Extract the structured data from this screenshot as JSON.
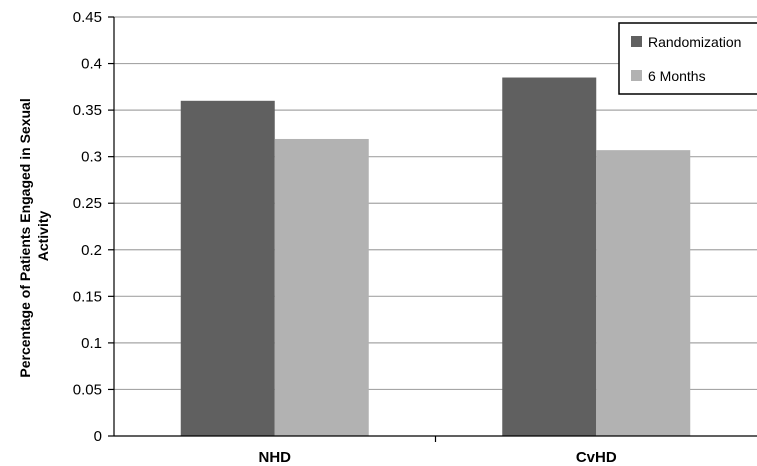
{
  "chart_data": {
    "type": "bar",
    "categories": [
      "NHD",
      "CvHD"
    ],
    "series": [
      {
        "name": "Randomization",
        "values": [
          0.36,
          0.385
        ],
        "color": "#606060"
      },
      {
        "name": "6 Months",
        "values": [
          0.319,
          0.307
        ],
        "color": "#b2b2b2"
      }
    ],
    "xlabel": "",
    "ylabel_lines": [
      "Percentage of Patients Engaged in Sexual",
      "Activity"
    ],
    "ylim": [
      0,
      0.45
    ],
    "yticks": [
      "0",
      "0.05",
      "0.1",
      "0.15",
      "0.2",
      "0.25",
      "0.3",
      "0.35",
      "0.4",
      "0.45"
    ],
    "grid": true,
    "legend_position": "top-right"
  }
}
